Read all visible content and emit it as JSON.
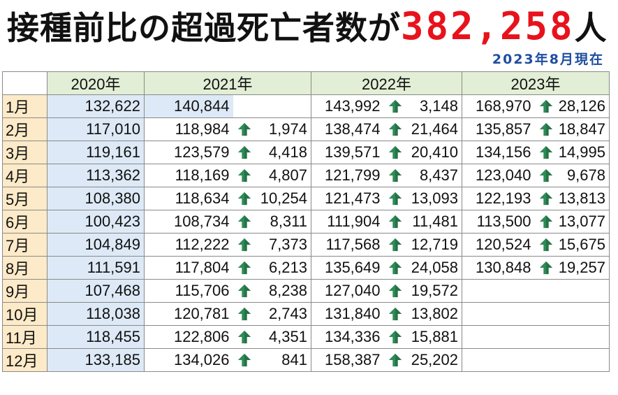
{
  "title": {
    "main": "接種前比の超過死亡者数が",
    "number": "382,258",
    "suffix": "人",
    "number_color": "#e8121c"
  },
  "as_of": "2023年8月現在",
  "table": {
    "headers": [
      "",
      "2020年",
      "2021年",
      "2022年",
      "2023年"
    ],
    "rows": [
      {
        "month": "1月",
        "y2020": "132,622",
        "y2021": "140,844",
        "d2021": "",
        "y2022": "143,992",
        "d2022": "3,148",
        "y2023": "168,970",
        "d2023": "28,126"
      },
      {
        "month": "2月",
        "y2020": "117,010",
        "y2021": "118,984",
        "d2021": "1,974",
        "y2022": "138,474",
        "d2022": "21,464",
        "y2023": "135,857",
        "d2023": "18,847"
      },
      {
        "month": "3月",
        "y2020": "119,161",
        "y2021": "123,579",
        "d2021": "4,418",
        "y2022": "139,571",
        "d2022": "20,410",
        "y2023": "134,156",
        "d2023": "14,995"
      },
      {
        "month": "4月",
        "y2020": "113,362",
        "y2021": "118,169",
        "d2021": "4,807",
        "y2022": "121,799",
        "d2022": "8,437",
        "y2023": "123,040",
        "d2023": "9,678"
      },
      {
        "month": "5月",
        "y2020": "108,380",
        "y2021": "118,634",
        "d2021": "10,254",
        "y2022": "121,473",
        "d2022": "13,093",
        "y2023": "122,193",
        "d2023": "13,813"
      },
      {
        "month": "6月",
        "y2020": "100,423",
        "y2021": "108,734",
        "d2021": "8,311",
        "y2022": "111,904",
        "d2022": "11,481",
        "y2023": "113,500",
        "d2023": "13,077"
      },
      {
        "month": "7月",
        "y2020": "104,849",
        "y2021": "112,222",
        "d2021": "7,373",
        "y2022": "117,568",
        "d2022": "12,719",
        "y2023": "120,524",
        "d2023": "15,675"
      },
      {
        "month": "8月",
        "y2020": "111,591",
        "y2021": "117,804",
        "d2021": "6,213",
        "y2022": "135,649",
        "d2022": "24,058",
        "y2023": "130,848",
        "d2023": "19,257"
      },
      {
        "month": "9月",
        "y2020": "107,468",
        "y2021": "115,706",
        "d2021": "8,238",
        "y2022": "127,040",
        "d2022": "19,572",
        "y2023": "",
        "d2023": ""
      },
      {
        "month": "10月",
        "y2020": "118,038",
        "y2021": "120,781",
        "d2021": "2,743",
        "y2022": "131,840",
        "d2022": "13,802",
        "y2023": "",
        "d2023": ""
      },
      {
        "month": "11月",
        "y2020": "118,455",
        "y2021": "122,806",
        "d2021": "4,351",
        "y2022": "134,336",
        "d2022": "15,881",
        "y2023": "",
        "d2023": ""
      },
      {
        "month": "12月",
        "y2020": "133,185",
        "y2021": "134,026",
        "d2021": "841",
        "y2022": "158,387",
        "d2022": "25,202",
        "y2023": "",
        "d2023": ""
      }
    ]
  },
  "colors": {
    "header_bg": "#e2eed5",
    "month_bg": "#fdeac8",
    "baseline_bg": "#dde9f6",
    "arrow": "#2e8b57"
  },
  "icons": {
    "increase": "up-arrow-icon"
  }
}
